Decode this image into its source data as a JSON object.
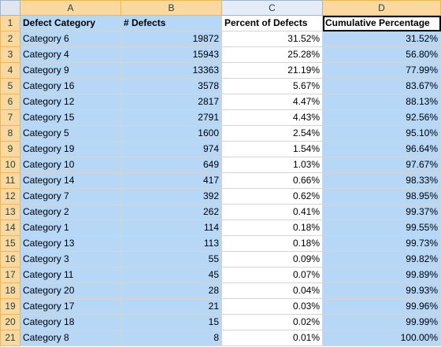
{
  "columns": [
    "A",
    "B",
    "C",
    "D"
  ],
  "header_row": {
    "row_num": "1",
    "cells": [
      "Defect Category",
      "# Defects",
      "Percent of Defects",
      "Cumulative Percentage"
    ]
  },
  "rows": [
    {
      "row_num": "2",
      "cells": [
        "Category 6",
        "19872",
        "31.52%",
        "31.52%"
      ]
    },
    {
      "row_num": "3",
      "cells": [
        "Category 4",
        "15943",
        "25.28%",
        "56.80%"
      ]
    },
    {
      "row_num": "4",
      "cells": [
        "Category 9",
        "13363",
        "21.19%",
        "77.99%"
      ]
    },
    {
      "row_num": "5",
      "cells": [
        "Category 16",
        "3578",
        "5.67%",
        "83.67%"
      ]
    },
    {
      "row_num": "6",
      "cells": [
        "Category 12",
        "2817",
        "4.47%",
        "88.13%"
      ]
    },
    {
      "row_num": "7",
      "cells": [
        "Category 15",
        "2791",
        "4.43%",
        "92.56%"
      ]
    },
    {
      "row_num": "8",
      "cells": [
        "Category 5",
        "1600",
        "2.54%",
        "95.10%"
      ]
    },
    {
      "row_num": "9",
      "cells": [
        "Category 19",
        "974",
        "1.54%",
        "96.64%"
      ]
    },
    {
      "row_num": "10",
      "cells": [
        "Category 10",
        "649",
        "1.03%",
        "97.67%"
      ]
    },
    {
      "row_num": "11",
      "cells": [
        "Category 14",
        "417",
        "0.66%",
        "98.33%"
      ]
    },
    {
      "row_num": "12",
      "cells": [
        "Category 7",
        "392",
        "0.62%",
        "98.95%"
      ]
    },
    {
      "row_num": "13",
      "cells": [
        "Category 2",
        "262",
        "0.41%",
        "99.37%"
      ]
    },
    {
      "row_num": "14",
      "cells": [
        "Category 1",
        "114",
        "0.18%",
        "99.55%"
      ]
    },
    {
      "row_num": "15",
      "cells": [
        "Category 13",
        "113",
        "0.18%",
        "99.73%"
      ]
    },
    {
      "row_num": "16",
      "cells": [
        "Category 3",
        "55",
        "0.09%",
        "99.82%"
      ]
    },
    {
      "row_num": "17",
      "cells": [
        "Category 11",
        "45",
        "0.07%",
        "99.89%"
      ]
    },
    {
      "row_num": "18",
      "cells": [
        "Category 20",
        "28",
        "0.04%",
        "99.93%"
      ]
    },
    {
      "row_num": "19",
      "cells": [
        "Category 17",
        "21",
        "0.03%",
        "99.96%"
      ]
    },
    {
      "row_num": "20",
      "cells": [
        "Category 18",
        "15",
        "0.02%",
        "99.99%"
      ]
    },
    {
      "row_num": "21",
      "cells": [
        "Category 8",
        "8",
        "0.01%",
        "100.00%"
      ]
    }
  ],
  "colors": {
    "selection_fill": "#b7d7f7",
    "header_bg": "#e4ecf7",
    "selected_header_bg": "#f9d99f",
    "gridline": "#d4d4d4"
  }
}
